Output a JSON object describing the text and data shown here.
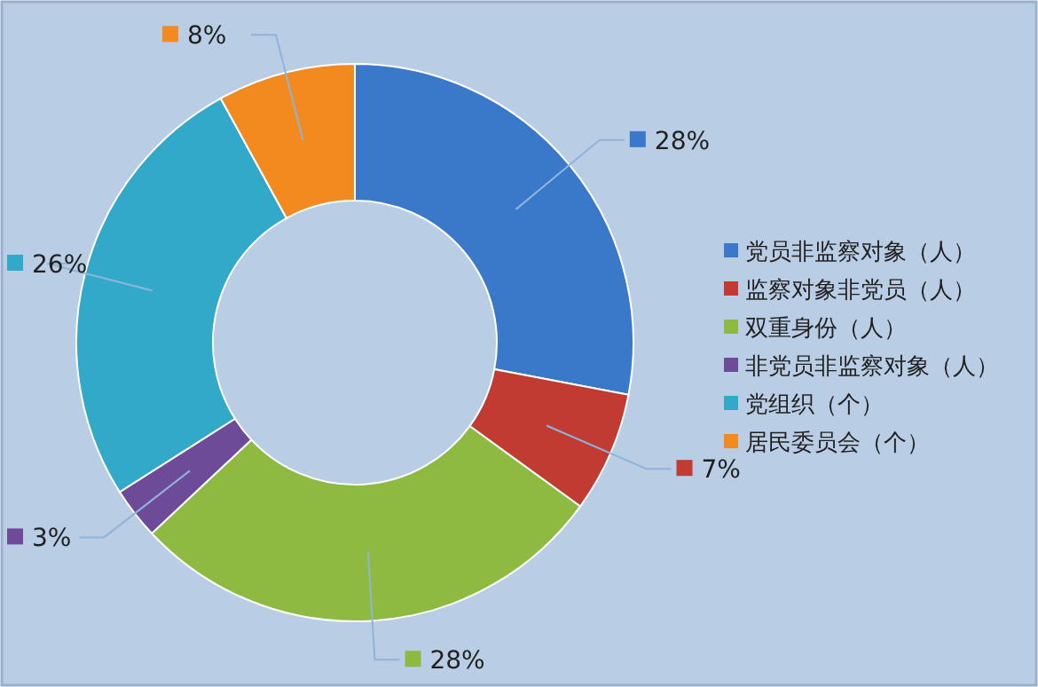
{
  "chart_data": {
    "type": "donut",
    "categories": [
      "党员非监察对象（人）",
      "监察对象非党员（人）",
      "双重身份（人）",
      "非党员非监察对象（人）",
      "党组织（个）",
      "居民委员会（个）"
    ],
    "values": [
      28,
      7,
      28,
      3,
      26,
      8
    ],
    "colors": [
      "#3a78c9",
      "#c23b33",
      "#8fba42",
      "#6d4b98",
      "#33a9c9",
      "#f28a1f"
    ],
    "value_labels": [
      "28%",
      "7%",
      "28%",
      "3%",
      "26%",
      "8%"
    ],
    "legend": "right"
  }
}
